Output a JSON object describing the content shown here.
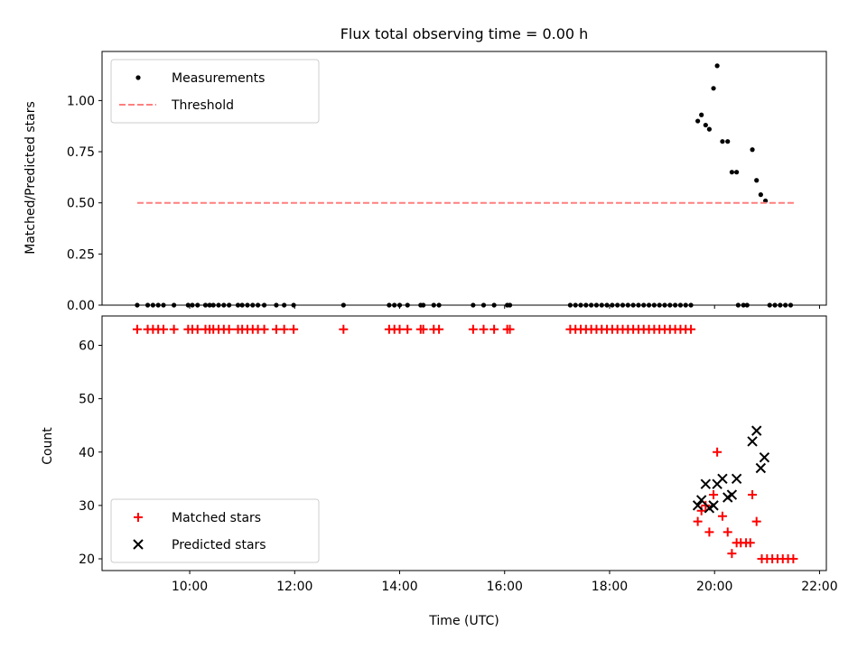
{
  "chart_data": [
    {
      "type": "scatter",
      "title": "Flux total observing time = 0.00 h",
      "ylabel": "Matched/Predicted stars",
      "xlabel": "",
      "x_unit": "hours (UTC)",
      "xlim": [
        8.33,
        22.13
      ],
      "ylim": [
        0,
        1.24
      ],
      "yticks": [
        0.0,
        0.25,
        0.5,
        0.75,
        1.0
      ],
      "ytick_labels": [
        "0.00",
        "0.25",
        "0.50",
        "0.75",
        "1.00"
      ],
      "grid": false,
      "legend": "top-left",
      "series": [
        {
          "name": "Measurements",
          "marker": "dot",
          "color": "#000000",
          "points": [
            [
              9.0,
              0
            ],
            [
              9.2,
              0
            ],
            [
              9.3,
              0
            ],
            [
              9.4,
              0
            ],
            [
              9.5,
              0
            ],
            [
              9.7,
              0
            ],
            [
              9.97,
              0
            ],
            [
              10.05,
              0
            ],
            [
              10.15,
              0
            ],
            [
              10.3,
              0
            ],
            [
              10.38,
              0
            ],
            [
              10.45,
              0
            ],
            [
              10.55,
              0
            ],
            [
              10.65,
              0
            ],
            [
              10.75,
              0
            ],
            [
              10.92,
              0
            ],
            [
              11.0,
              0
            ],
            [
              11.1,
              0
            ],
            [
              11.2,
              0
            ],
            [
              11.3,
              0
            ],
            [
              11.42,
              0
            ],
            [
              11.65,
              0
            ],
            [
              11.8,
              0
            ],
            [
              11.98,
              0
            ],
            [
              12.93,
              0
            ],
            [
              13.8,
              0
            ],
            [
              13.9,
              0
            ],
            [
              14.0,
              0
            ],
            [
              14.15,
              0
            ],
            [
              14.4,
              0
            ],
            [
              14.45,
              0
            ],
            [
              14.65,
              0
            ],
            [
              14.75,
              0
            ],
            [
              15.4,
              0
            ],
            [
              15.6,
              0
            ],
            [
              15.8,
              0
            ],
            [
              16.05,
              0
            ],
            [
              16.1,
              0
            ],
            [
              17.25,
              0
            ],
            [
              17.35,
              0
            ],
            [
              17.45,
              0
            ],
            [
              17.55,
              0
            ],
            [
              17.65,
              0
            ],
            [
              17.75,
              0
            ],
            [
              17.85,
              0
            ],
            [
              17.95,
              0
            ],
            [
              18.05,
              0
            ],
            [
              18.15,
              0
            ],
            [
              18.25,
              0
            ],
            [
              18.35,
              0
            ],
            [
              18.45,
              0
            ],
            [
              18.55,
              0
            ],
            [
              18.65,
              0
            ],
            [
              18.75,
              0
            ],
            [
              18.85,
              0
            ],
            [
              18.95,
              0
            ],
            [
              19.05,
              0
            ],
            [
              19.15,
              0
            ],
            [
              19.25,
              0
            ],
            [
              19.35,
              0
            ],
            [
              19.45,
              0
            ],
            [
              19.55,
              0
            ],
            [
              20.45,
              0
            ],
            [
              20.55,
              0
            ],
            [
              20.62,
              0
            ],
            [
              21.05,
              0
            ],
            [
              21.15,
              0
            ],
            [
              21.25,
              0
            ],
            [
              21.35,
              0
            ],
            [
              21.45,
              0
            ],
            [
              19.68,
              0.9
            ],
            [
              19.75,
              0.93
            ],
            [
              19.83,
              0.88
            ],
            [
              19.9,
              0.86
            ],
            [
              19.98,
              1.06
            ],
            [
              20.05,
              1.17
            ],
            [
              20.15,
              0.8
            ],
            [
              20.25,
              0.8
            ],
            [
              20.33,
              0.65
            ],
            [
              20.42,
              0.65
            ],
            [
              20.72,
              0.76
            ],
            [
              20.8,
              0.61
            ],
            [
              20.88,
              0.54
            ],
            [
              20.97,
              0.51
            ]
          ]
        },
        {
          "name": "Threshold",
          "marker": "dashed-line",
          "color": "#ff7f7f",
          "points": [
            [
              9.0,
              0.5
            ],
            [
              21.55,
              0.5
            ]
          ]
        }
      ]
    },
    {
      "type": "scatter",
      "title": "",
      "ylabel": "Count",
      "xlabel": "Time (UTC)",
      "x_unit": "hours (UTC)",
      "xlim": [
        8.33,
        22.13
      ],
      "ylim": [
        17.8,
        65.5
      ],
      "yticks": [
        20,
        30,
        40,
        50,
        60
      ],
      "ytick_labels": [
        "20",
        "30",
        "40",
        "50",
        "60"
      ],
      "xticks": [
        10,
        12,
        14,
        16,
        18,
        20,
        22
      ],
      "xtick_labels": [
        "10:00",
        "12:00",
        "14:00",
        "16:00",
        "18:00",
        "20:00",
        "22:00"
      ],
      "grid": false,
      "legend": "bottom-left",
      "series": [
        {
          "name": "Matched stars",
          "marker": "plus",
          "color": "#ff0000",
          "points": [
            [
              9.0,
              63
            ],
            [
              9.2,
              63
            ],
            [
              9.3,
              63
            ],
            [
              9.4,
              63
            ],
            [
              9.5,
              63
            ],
            [
              9.7,
              63
            ],
            [
              9.97,
              63
            ],
            [
              10.05,
              63
            ],
            [
              10.15,
              63
            ],
            [
              10.3,
              63
            ],
            [
              10.38,
              63
            ],
            [
              10.45,
              63
            ],
            [
              10.55,
              63
            ],
            [
              10.65,
              63
            ],
            [
              10.75,
              63
            ],
            [
              10.92,
              63
            ],
            [
              11.0,
              63
            ],
            [
              11.1,
              63
            ],
            [
              11.2,
              63
            ],
            [
              11.3,
              63
            ],
            [
              11.42,
              63
            ],
            [
              11.65,
              63
            ],
            [
              11.8,
              63
            ],
            [
              11.98,
              63
            ],
            [
              12.93,
              63
            ],
            [
              13.8,
              63
            ],
            [
              13.9,
              63
            ],
            [
              14.0,
              63
            ],
            [
              14.15,
              63
            ],
            [
              14.4,
              63
            ],
            [
              14.45,
              63
            ],
            [
              14.65,
              63
            ],
            [
              14.75,
              63
            ],
            [
              15.4,
              63
            ],
            [
              15.6,
              63
            ],
            [
              15.8,
              63
            ],
            [
              16.05,
              63
            ],
            [
              16.1,
              63
            ],
            [
              17.25,
              63
            ],
            [
              17.35,
              63
            ],
            [
              17.45,
              63
            ],
            [
              17.55,
              63
            ],
            [
              17.65,
              63
            ],
            [
              17.75,
              63
            ],
            [
              17.85,
              63
            ],
            [
              17.95,
              63
            ],
            [
              18.05,
              63
            ],
            [
              18.15,
              63
            ],
            [
              18.25,
              63
            ],
            [
              18.35,
              63
            ],
            [
              18.45,
              63
            ],
            [
              18.55,
              63
            ],
            [
              18.65,
              63
            ],
            [
              18.75,
              63
            ],
            [
              18.85,
              63
            ],
            [
              18.95,
              63
            ],
            [
              19.05,
              63
            ],
            [
              19.15,
              63
            ],
            [
              19.25,
              63
            ],
            [
              19.35,
              63
            ],
            [
              19.45,
              63
            ],
            [
              19.55,
              63
            ],
            [
              19.68,
              27
            ],
            [
              19.75,
              29
            ],
            [
              19.83,
              30
            ],
            [
              19.9,
              25
            ],
            [
              19.98,
              32
            ],
            [
              20.05,
              40
            ],
            [
              20.15,
              28
            ],
            [
              20.25,
              25
            ],
            [
              20.33,
              21
            ],
            [
              20.42,
              23
            ],
            [
              20.5,
              23
            ],
            [
              20.6,
              23
            ],
            [
              20.68,
              23
            ],
            [
              20.72,
              32
            ],
            [
              20.8,
              27
            ],
            [
              20.9,
              20
            ],
            [
              21.0,
              20
            ],
            [
              21.1,
              20
            ],
            [
              21.2,
              20
            ],
            [
              21.3,
              20
            ],
            [
              21.4,
              20
            ],
            [
              21.5,
              20
            ]
          ]
        },
        {
          "name": "Predicted stars",
          "marker": "x",
          "color": "#000000",
          "points": [
            [
              19.68,
              30
            ],
            [
              19.75,
              31
            ],
            [
              19.83,
              34
            ],
            [
              19.9,
              29.5
            ],
            [
              19.98,
              30
            ],
            [
              20.05,
              34
            ],
            [
              20.15,
              35
            ],
            [
              20.25,
              31.5
            ],
            [
              20.33,
              32
            ],
            [
              20.42,
              35
            ],
            [
              20.72,
              42
            ],
            [
              20.8,
              44
            ],
            [
              20.88,
              37
            ],
            [
              20.95,
              39
            ]
          ]
        }
      ]
    }
  ]
}
